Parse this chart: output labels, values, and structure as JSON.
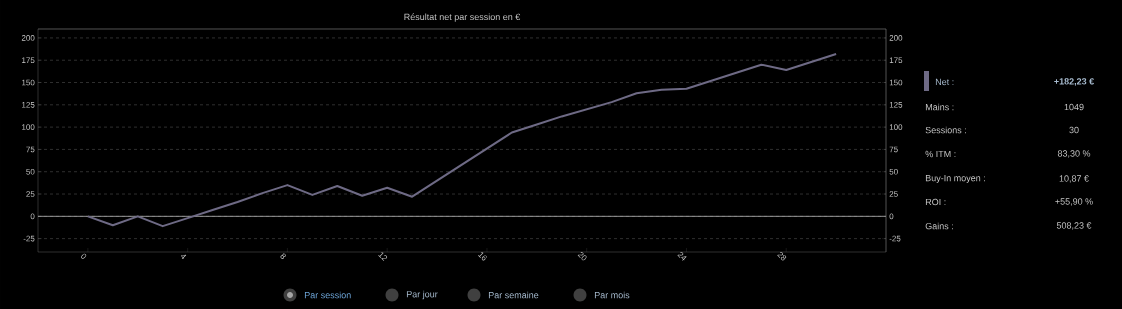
{
  "chart_data": {
    "type": "line",
    "title": "Résultat net par session en €",
    "x": [
      0,
      1,
      2,
      3,
      4,
      5,
      6,
      7,
      8,
      9,
      10,
      11,
      12,
      13,
      14,
      15,
      16,
      17,
      18,
      19,
      20,
      21,
      22,
      23,
      24,
      25,
      26,
      27,
      28,
      29,
      30
    ],
    "series": [
      {
        "name": "Net :",
        "color": "#6e6a85",
        "values": [
          0,
          -10,
          0,
          -11,
          -2,
          7,
          16,
          26,
          35,
          24,
          34,
          23,
          32,
          22,
          40,
          58,
          76,
          94,
          103,
          112,
          120,
          128,
          138,
          142,
          143,
          152,
          161,
          170,
          164,
          173,
          182
        ]
      }
    ],
    "xlim": [
      -2,
      32
    ],
    "xticks": [
      0,
      4,
      8,
      12,
      16,
      20,
      24,
      28
    ],
    "ylim": [
      -40,
      210
    ],
    "yticks": [
      -25,
      0,
      25,
      50,
      75,
      100,
      125,
      150,
      175,
      200
    ],
    "y2lim": [
      -40,
      210
    ],
    "y2ticks": [
      -25,
      0,
      25,
      50,
      75,
      100,
      125,
      150,
      175,
      200
    ],
    "ref_lines": [
      {
        "axis": "y",
        "value": 0,
        "color": "#bbbbbb"
      }
    ],
    "grid": "y",
    "legend": "right",
    "marker": "none",
    "line_style": "solid",
    "annotations": [
      "+182,23 €",
      "Mains :",
      "1049",
      "Sessions :",
      "30",
      "% ITM :",
      "83,30 %",
      "Buy-In moyen :",
      "10,87 €",
      "ROI :",
      "+55,90 %",
      "Gains :",
      "508,23 €",
      "Par session",
      "Par jour",
      "Par semaine",
      "Par mois"
    ]
  }
}
